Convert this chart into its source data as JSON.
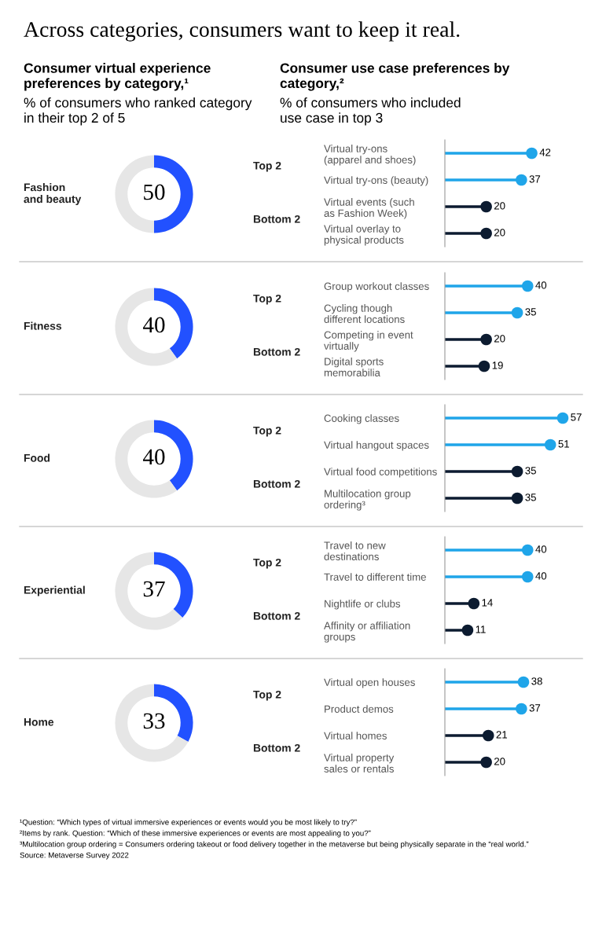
{
  "chart_data": [
    {
      "type": "other",
      "title": "Across categories, consumers want to keep it real.",
      "annotations": [
        "Consumer virtual experience\npreferences by category,¹",
        "% of consumers who ranked category\nin their top 2 of 5",
        "Consumer use case preferences by\ncategory,²",
        "% of consumers who included\nuse case in top 3"
      ]
    },
    {
      "type": "donut",
      "title": "Fashion\nand beauty",
      "categories": [
        null,
        null
      ],
      "values": [
        50,
        50
      ],
      "colors": [
        "#2251ff",
        "#e6e6e6"
      ],
      "value_labels": [
        "50",
        null
      ]
    },
    {
      "type": "lollipop",
      "orientation": "horizontal",
      "categories": [
        "Virtual try-ons\n(apparel and shoes)",
        "Virtual try-ons (beauty)",
        "Virtual events (such\nas Fashion Week)",
        "Virtual overlay to\nphysical products"
      ],
      "values": [
        42,
        37,
        20,
        20
      ],
      "colors": [
        "#1fa5e9",
        "#1fa5e9",
        "#0c1b30",
        "#0c1b30"
      ],
      "data_labels": true,
      "tick_labels": "y",
      "annotations": [
        "Top 2",
        "Bottom 2"
      ]
    },
    {
      "type": "donut",
      "title": "Fitness",
      "categories": [
        null,
        null
      ],
      "values": [
        40,
        60
      ],
      "colors": [
        "#2251ff",
        "#e6e6e6"
      ],
      "value_labels": [
        "40",
        null
      ]
    },
    {
      "type": "lollipop",
      "orientation": "horizontal",
      "categories": [
        "Group workout classes",
        "Cycling though\ndifferent locations",
        "Competing in event\nvirtually",
        "Digital sports\nmemorabilia"
      ],
      "values": [
        40,
        35,
        20,
        19
      ],
      "colors": [
        "#1fa5e9",
        "#1fa5e9",
        "#0c1b30",
        "#0c1b30"
      ],
      "data_labels": true,
      "tick_labels": "y",
      "annotations": [
        "Top 2",
        "Bottom 2"
      ]
    },
    {
      "type": "donut",
      "title": "Food",
      "categories": [
        null,
        null
      ],
      "values": [
        40,
        60
      ],
      "colors": [
        "#2251ff",
        "#e6e6e6"
      ],
      "value_labels": [
        "40",
        null
      ]
    },
    {
      "type": "lollipop",
      "orientation": "horizontal",
      "categories": [
        "Cooking classes",
        "Virtual hangout spaces",
        "Virtual food competitions",
        "Multilocation group\nordering³"
      ],
      "values": [
        57,
        51,
        35,
        35
      ],
      "colors": [
        "#1fa5e9",
        "#1fa5e9",
        "#0c1b30",
        "#0c1b30"
      ],
      "data_labels": true,
      "tick_labels": "y",
      "annotations": [
        "Top 2",
        "Bottom 2"
      ]
    },
    {
      "type": "donut",
      "title": "Experiential",
      "categories": [
        null,
        null
      ],
      "values": [
        37,
        63
      ],
      "colors": [
        "#2251ff",
        "#e6e6e6"
      ],
      "value_labels": [
        "37",
        null
      ]
    },
    {
      "type": "lollipop",
      "orientation": "horizontal",
      "categories": [
        "Travel to new\ndestinations",
        "Travel to different time",
        "Nightlife or clubs",
        "Affinity or affiliation\ngroups"
      ],
      "values": [
        40,
        40,
        14,
        11
      ],
      "colors": [
        "#1fa5e9",
        "#1fa5e9",
        "#0c1b30",
        "#0c1b30"
      ],
      "data_labels": true,
      "tick_labels": "y",
      "annotations": [
        "Top 2",
        "Bottom 2"
      ]
    },
    {
      "type": "donut",
      "title": "Home",
      "categories": [
        null,
        null
      ],
      "values": [
        33,
        67
      ],
      "colors": [
        "#2251ff",
        "#e6e6e6"
      ],
      "value_labels": [
        "33",
        null
      ]
    },
    {
      "type": "lollipop",
      "orientation": "horizontal",
      "categories": [
        "Virtual open houses",
        "Product demos",
        "Virtual homes",
        "Virtual property\nsales or rentals"
      ],
      "values": [
        38,
        37,
        21,
        20
      ],
      "colors": [
        "#1fa5e9",
        "#1fa5e9",
        "#0c1b30",
        "#0c1b30"
      ],
      "data_labels": true,
      "tick_labels": "y",
      "annotations": [
        "Top 2",
        "Bottom 2"
      ]
    },
    {
      "type": "other",
      "annotations": [
        "¹Question: “Which types of virtual immersive experiences or events would you be most likely to try?”",
        "²Items by rank. Question: “Which of these immersive experiences or events are most appealing to you?”",
        "³Multilocation group ordering = Consumers ordering takeout or food delivery together in the metaverse but being physically separate in the “real world.”",
        "Source: Metaverse Survey 2022"
      ]
    }
  ]
}
